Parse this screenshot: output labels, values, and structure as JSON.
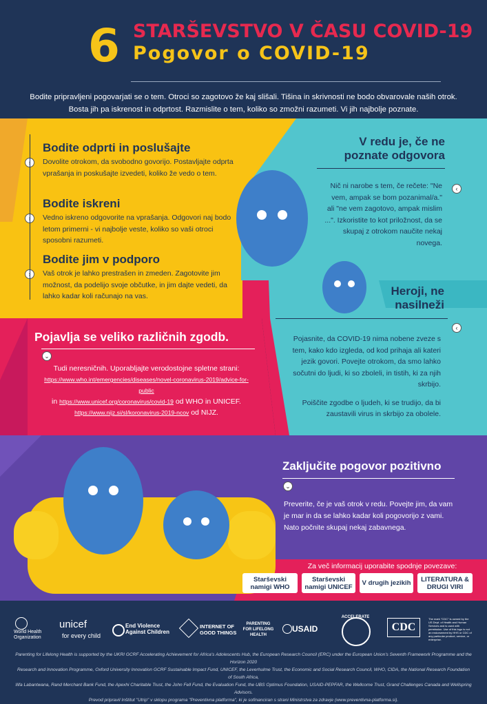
{
  "header": {
    "number": "6",
    "title_line1": "STARŠEVSTVO V ČASU COVID-19",
    "title_line2": "Pogovor o COVID-19",
    "intro_line1": "Bodite pripravljeni pogovarjati se o tem. Otroci so zagotovo že kaj slišali. Tišina in skrivnosti ne bodo obvarovale naših otrok.",
    "intro_line2": "Bosta jih pa iskrenost in odprtost. Razmislite o tem, koliko so zmožni razumeti. Vi jih najbolje poznate."
  },
  "tips": [
    {
      "title": "Bodite odprti in poslušajte",
      "body": "Dovolite otrokom, da svobodno govorijo. Postavljajte odprta vprašanja in poskušajte izvedeti, koliko že vedo o tem."
    },
    {
      "title": "Bodite iskreni",
      "body": "Vedno iskreno odgovorite na vprašanja. Odgovori naj bodo letom primerni - vi najbolje veste, koliko so vaši otroci sposobni razumeti."
    },
    {
      "title": "Bodite jim v podporo",
      "body": "Vaš otrok je lahko prestrašen in zmeden. Zagotovite jim možnost, da podelijo svoje občutke, in jim dajte vedeti, da lahko kadar koli računajo na vas."
    }
  ],
  "right_top": {
    "title": "V redu je, če ne poznate odgovora",
    "body": "Nič ni narobe s tem, če rečete: \"Ne vem, ampak se bom pozanimal/a.\" ali \"ne vem zagotovo, ampak mislim ...\". Izkoristite to kot priložnost, da se skupaj z otrokom naučite nekaj novega."
  },
  "heroes": {
    "title": "Heroji, ne nasilneži",
    "body1": "Pojasnite, da COVID-19 nima nobene zveze s tem, kako kdo izgleda, od kod prihaja ali kateri jezik govori. Povejte otrokom, da smo lahko sočutni do ljudi, ki so zboleli, in tistih, ki za njih skrbijo.",
    "body2": "Poiščite zgodbe o ljudeh, ki se trudijo, da bi zaustavili virus in skrbijo za obolele."
  },
  "stories": {
    "title": "Pojavlja se veliko različnih zgodb.",
    "body": "Tudi neresničnih. Uporabljajte verodostojne spletne strani:",
    "link1": "https://www.who.int/emergencies/diseases/novel-coronavirus-2019/advice-for-public",
    "in1": "in",
    "link2": "https://www.unicef.org/coronavirus/covid-19",
    "mid": "od WHO in UNICEF.",
    "link3": "https://www.nijz.si/sl/koronavirus-2019-ncov",
    "end": "od NIJZ."
  },
  "conclude": {
    "title": "Zaključite pogovor pozitivno",
    "body": "Preverite, če je vaš otrok v redu. Povejte jim, da vam je mar in da se lahko kadar koli pogovorijo z vami. Nato počnite skupaj nekaj zabavnega."
  },
  "more": {
    "label": "Za več informacij uporabite spodnje povezave:",
    "buttons": [
      "Starševski namigi WHO",
      "Starševski namigi UNICEF",
      "V drugih jezikih",
      "LITERATURA & DRUGI VIRI"
    ]
  },
  "logos": {
    "who": "World Health Organization",
    "unicef": "unicef",
    "unicef_tag": "for every child",
    "endviolence": "End Violence Against Children",
    "internet": "INTERNET OF GOOD THINGS",
    "parenting": "PARENTING FOR LIFELONG HEALTH",
    "usaid": "USAID",
    "accelerate": "ACCELERATE",
    "cdc": "CDC",
    "cdc_note": "The mark \"CDC\" is owned by the US Dept. of Health and Human Services and is used with permission. Use of this logo is not an endorsement by HHS or CDC of any particular product, service, or enterprise."
  },
  "credits": {
    "line1": "Parenting for Lifelong Health is supported by the UKRI GCRF Accelerating Achievement for Africa's Adolescents Hub, the European Research Council (ERC) under the European Union's Seventh Framework Programme and the Horizon 2020",
    "line2": "Research and Innovation Programme, Oxford University Innovation GCRF Sustainable Impact Fund, UNICEF, the Leverhulme Trust, the Economic and Social Research Council, WHO, CIDA, the National Research Foundation of South Africa,",
    "line3": "Ilifa Labantwana, Rand Merchant Bank Fund, the Apexhi Charitable Trust, the John Fell Fund, the Evaluation Fund, the UBS Optimus Foundation, USAID-PEPFAR, the Wellcome Trust, Grand Challenges Canada and Wellspring Advisors.",
    "line4": "Prevod pripravil Inštitut \"Utrip\" v sklopu programa \"Preventivna platforma\", ki je sofinanciran s strani Ministrstva za zdravje (www.preventivna-platforma.si)."
  },
  "colors": {
    "navy": "#1f3457",
    "yellow": "#f9c212",
    "teal": "#52c5cd",
    "pink": "#e4205a",
    "purple": "#6045a7",
    "red_tab": "#e6294f"
  }
}
